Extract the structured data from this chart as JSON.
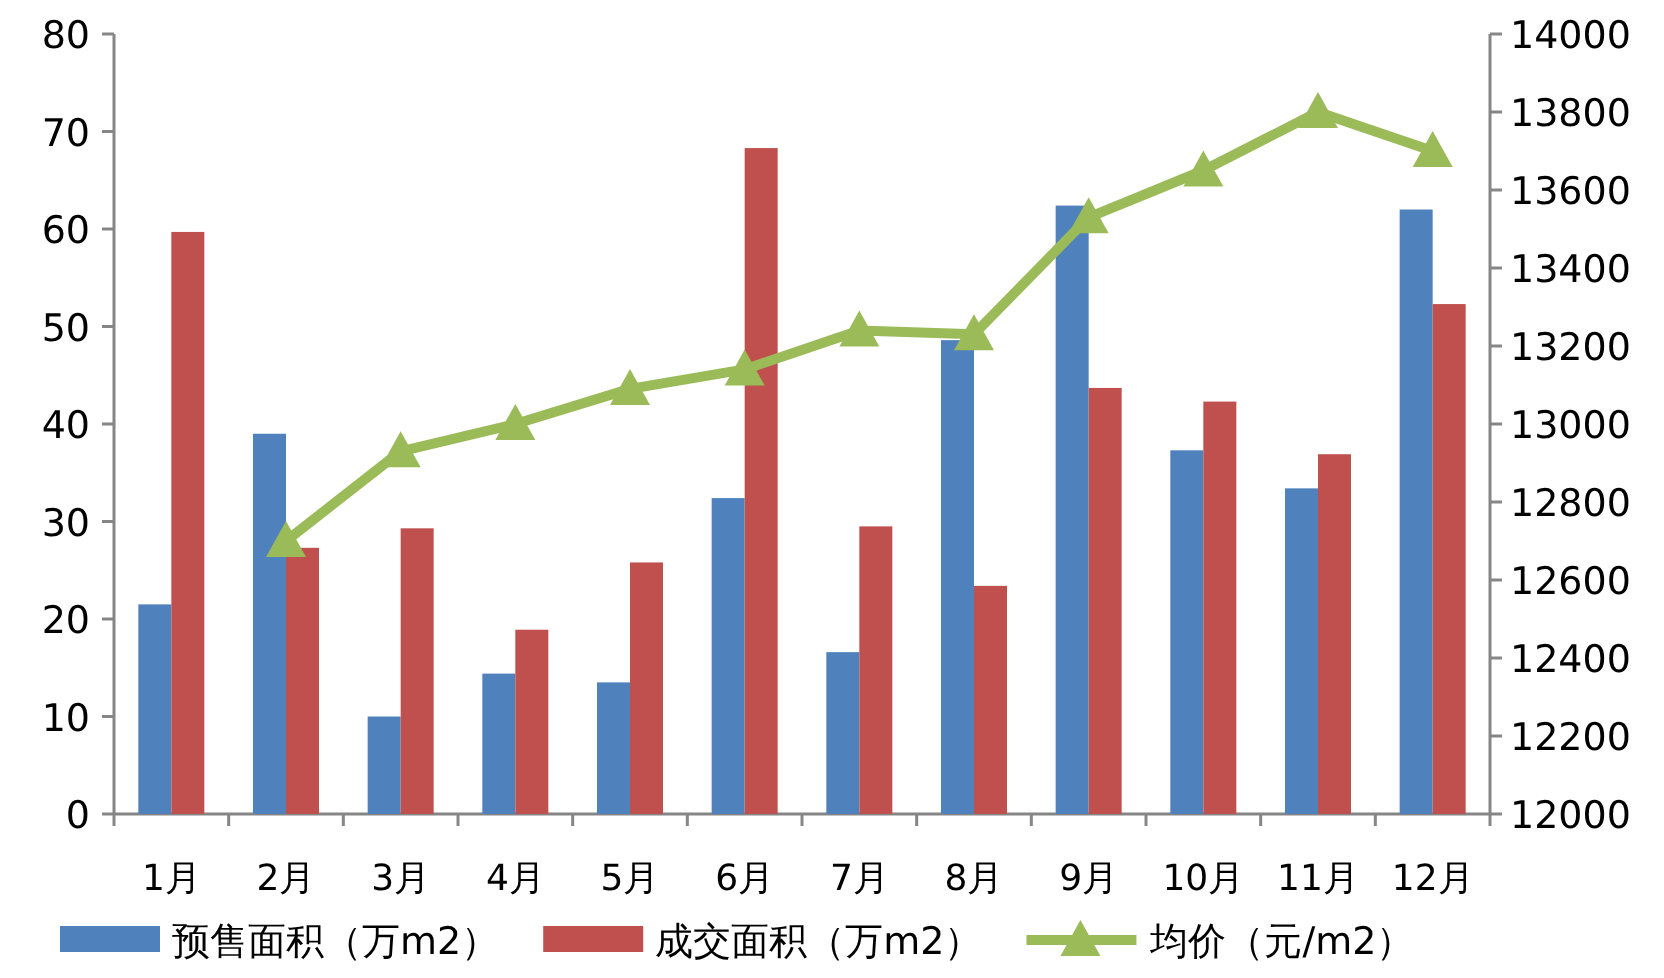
{
  "chart_data": {
    "type": "bar",
    "categories": [
      "1月",
      "2月",
      "3月",
      "4月",
      "5月",
      "6月",
      "7月",
      "8月",
      "9月",
      "10月",
      "11月",
      "12月"
    ],
    "series": [
      {
        "name": "预售面积（万m2）",
        "color": "#4f81bd",
        "values": [
          21.5,
          39,
          10,
          14.4,
          13.5,
          32.4,
          16.6,
          48.6,
          62.4,
          37.3,
          33.4,
          62
        ]
      },
      {
        "name": "成交面积（万m2）",
        "color": "#c0504d",
        "values": [
          59.7,
          27.3,
          29.3,
          18.9,
          25.8,
          68.3,
          29.5,
          23.4,
          43.7,
          42.3,
          36.9,
          52.3
        ]
      },
      {
        "name": "均价（元/m2）",
        "type": "line",
        "axis": "y2",
        "marker": "triangle",
        "line_style": "solid",
        "color": "#9bbb59",
        "values": [
          null,
          12700,
          12930,
          13000,
          13090,
          13140,
          13240,
          13230,
          13530,
          13650,
          13800,
          13700
        ]
      }
    ],
    "ylim": [
      0,
      80
    ],
    "yticks": [
      0,
      10,
      20,
      30,
      40,
      50,
      60,
      70,
      80
    ],
    "y2lim": [
      12000,
      14000
    ],
    "y2ticks": [
      12000,
      12200,
      12400,
      12600,
      12800,
      13000,
      13200,
      13400,
      13600,
      13800,
      14000
    ],
    "legend": "bottom"
  }
}
